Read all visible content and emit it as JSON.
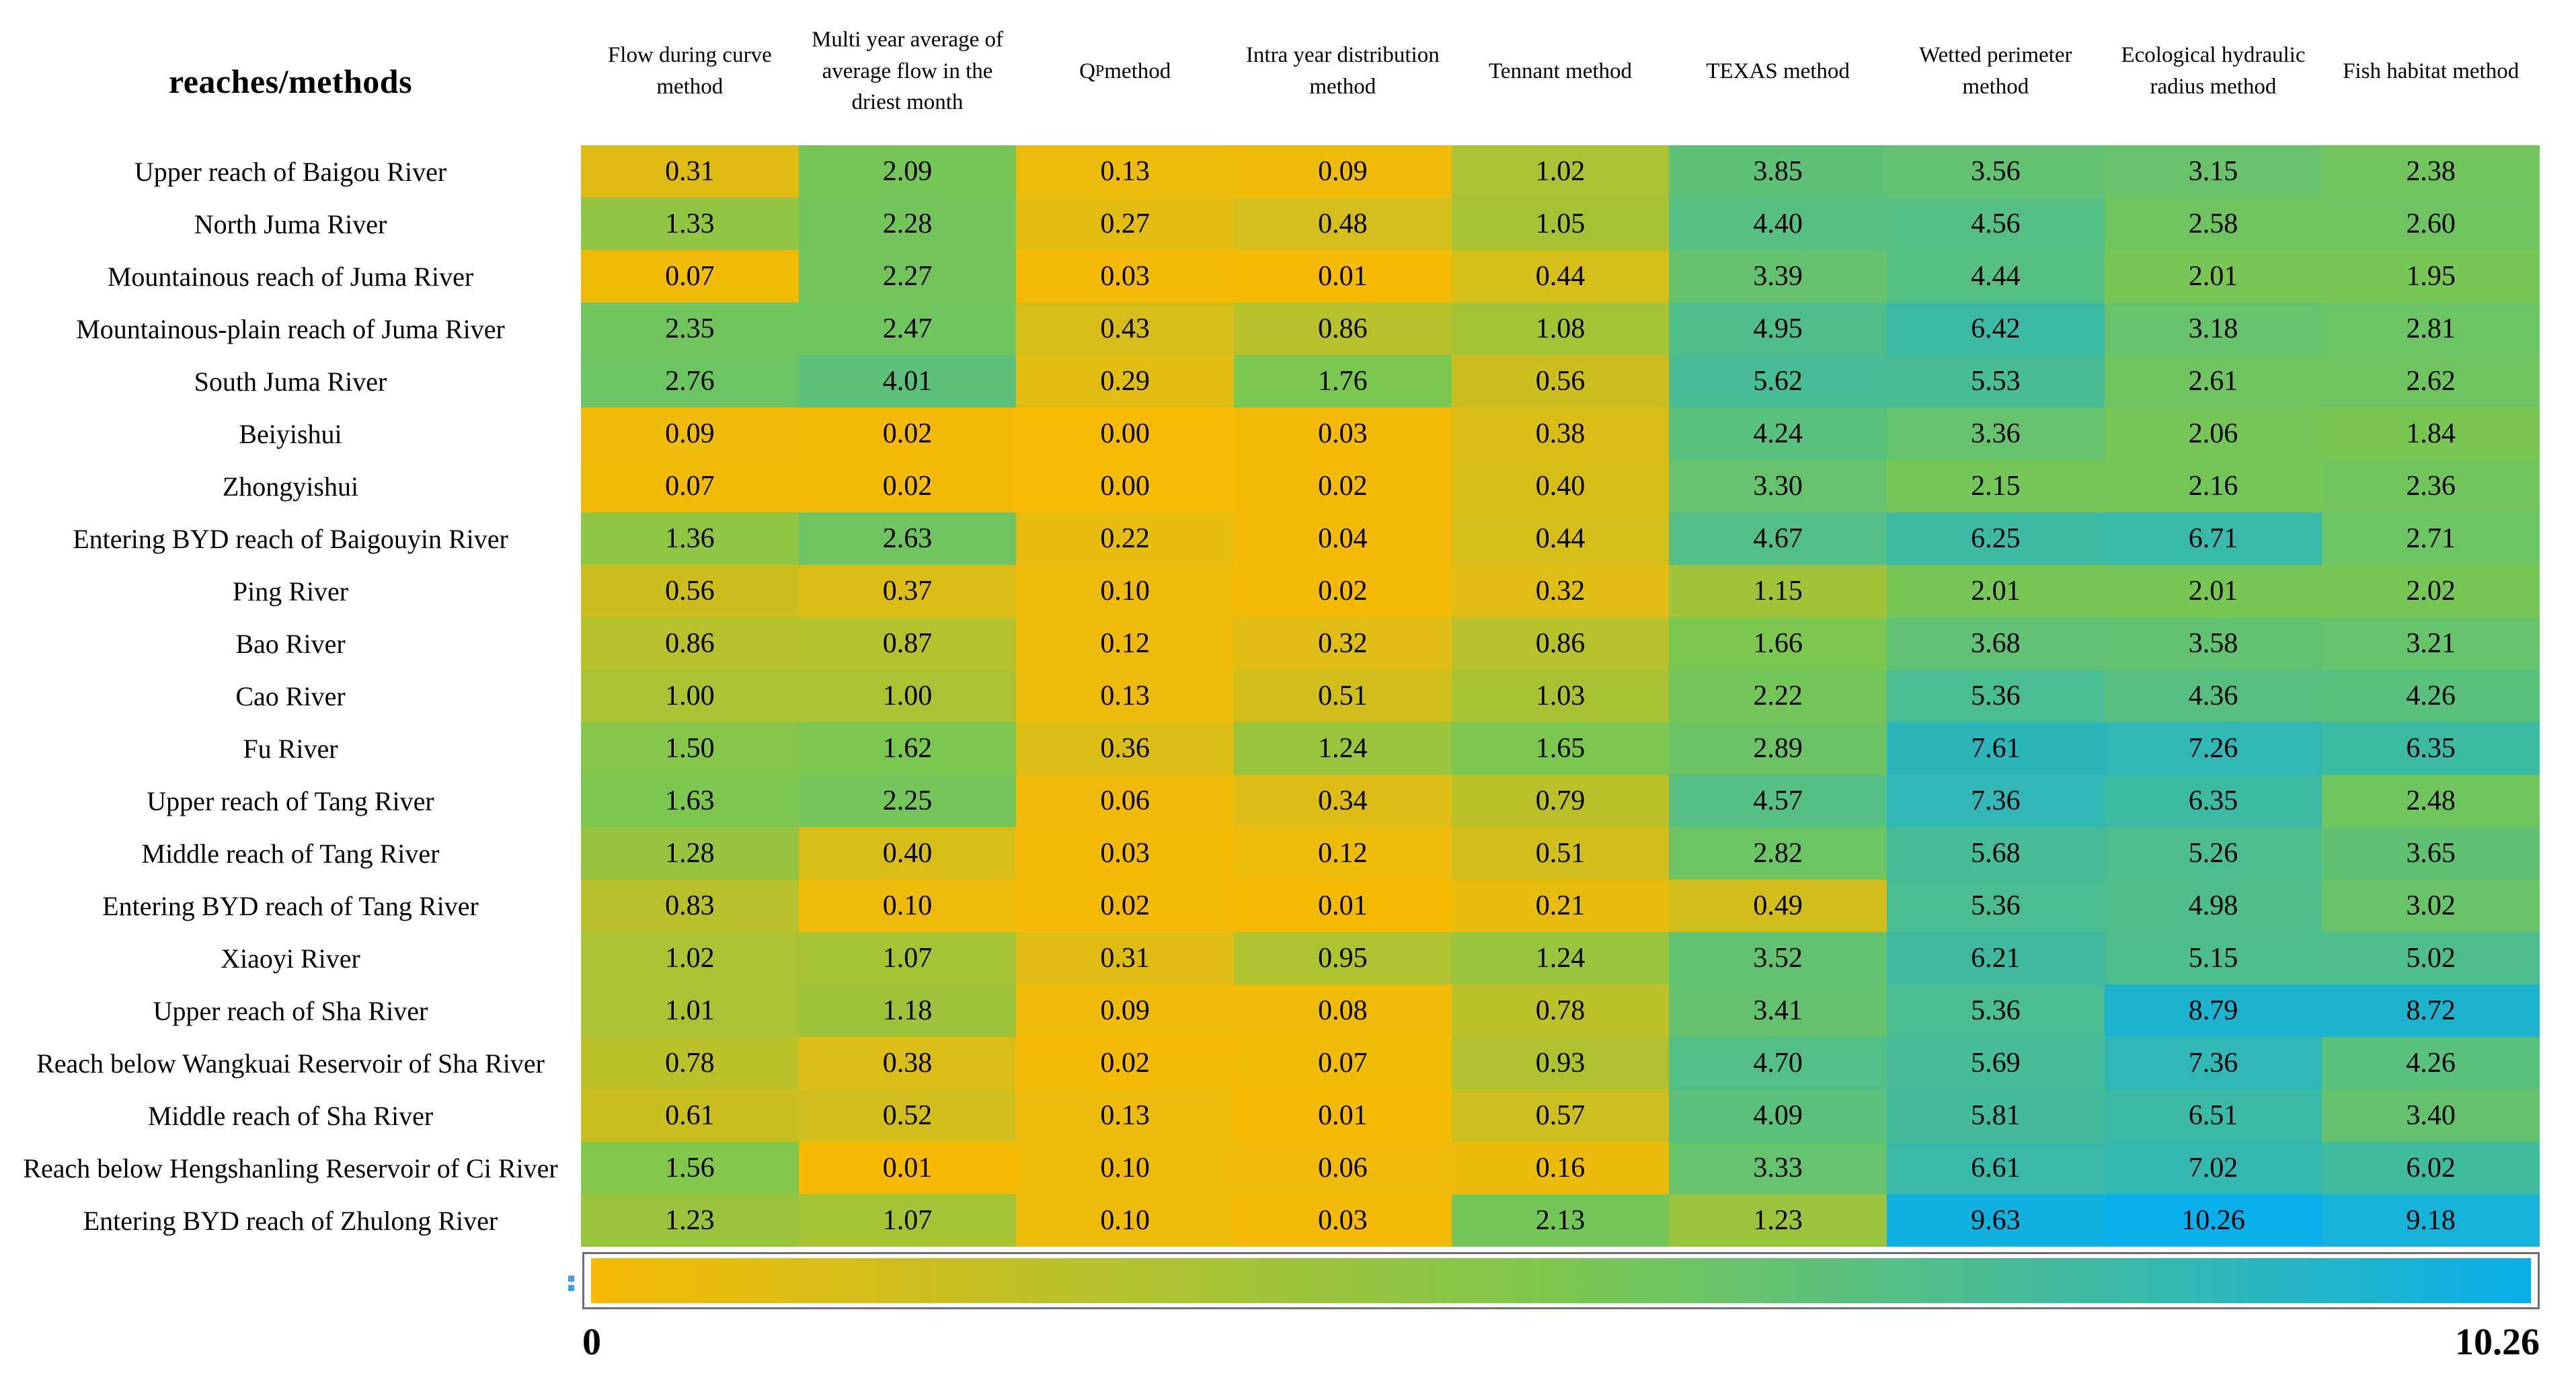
{
  "title": "reaches/methods",
  "chart_data": {
    "type": "heatmap",
    "title": "reaches/methods",
    "legend_position": "bottom",
    "columns": [
      {
        "label": "Flow during curve method"
      },
      {
        "label": "Multi year average of average flow in the driest month"
      },
      {
        "label": "QP method",
        "base": "Q",
        "subscript": "P",
        "suffix": " method"
      },
      {
        "label": "Intra year distribution method"
      },
      {
        "label": "Tennant method"
      },
      {
        "label": "TEXAS method"
      },
      {
        "label": "Wetted perimeter method"
      },
      {
        "label": "Ecological hydraulic radius method"
      },
      {
        "label": "Fish habitat method"
      }
    ],
    "rows": [
      "Upper reach of Baigou River",
      "North Juma River",
      "Mountainous reach of Juma River",
      "Mountainous-plain reach of Juma River",
      "South Juma River",
      "Beiyishui",
      "Zhongyishui",
      "Entering BYD reach of Baigouyin River",
      "Ping River",
      "Bao River",
      "Cao River",
      "Fu River",
      "Upper reach of Tang River",
      "Middle reach of Tang River",
      "Entering BYD reach of Tang River",
      "Xiaoyi River",
      "Upper reach of Sha River",
      "Reach below Wangkuai Reservoir of Sha River",
      "Middle reach of Sha River",
      "Reach below Hengshanling Reservoir of Ci River",
      "Entering BYD reach of Zhulong River"
    ],
    "values": [
      [
        0.31,
        2.09,
        0.13,
        0.09,
        1.02,
        3.85,
        3.56,
        3.15,
        2.38
      ],
      [
        1.33,
        2.28,
        0.27,
        0.48,
        1.05,
        4.4,
        4.56,
        2.58,
        2.6
      ],
      [
        0.07,
        2.27,
        0.03,
        0.01,
        0.44,
        3.39,
        4.44,
        2.01,
        1.95
      ],
      [
        2.35,
        2.47,
        0.43,
        0.86,
        1.08,
        4.95,
        6.42,
        3.18,
        2.81
      ],
      [
        2.76,
        4.01,
        0.29,
        1.76,
        0.56,
        5.62,
        5.53,
        2.61,
        2.62
      ],
      [
        0.09,
        0.02,
        0.0,
        0.03,
        0.38,
        4.24,
        3.36,
        2.06,
        1.84
      ],
      [
        0.07,
        0.02,
        0.0,
        0.02,
        0.4,
        3.3,
        2.15,
        2.16,
        2.36
      ],
      [
        1.36,
        2.63,
        0.22,
        0.04,
        0.44,
        4.67,
        6.25,
        6.71,
        2.71
      ],
      [
        0.56,
        0.37,
        0.1,
        0.02,
        0.32,
        1.15,
        2.01,
        2.01,
        2.02
      ],
      [
        0.86,
        0.87,
        0.12,
        0.32,
        0.86,
        1.66,
        3.68,
        3.58,
        3.21
      ],
      [
        1.0,
        1.0,
        0.13,
        0.51,
        1.03,
        2.22,
        5.36,
        4.36,
        4.26
      ],
      [
        1.5,
        1.62,
        0.36,
        1.24,
        1.65,
        2.89,
        7.61,
        7.26,
        6.35
      ],
      [
        1.63,
        2.25,
        0.06,
        0.34,
        0.79,
        4.57,
        7.36,
        6.35,
        2.48
      ],
      [
        1.28,
        0.4,
        0.03,
        0.12,
        0.51,
        2.82,
        5.68,
        5.26,
        3.65
      ],
      [
        0.83,
        0.1,
        0.02,
        0.01,
        0.21,
        0.49,
        5.36,
        4.98,
        3.02
      ],
      [
        1.02,
        1.07,
        0.31,
        0.95,
        1.24,
        3.52,
        6.21,
        5.15,
        5.02
      ],
      [
        1.01,
        1.18,
        0.09,
        0.08,
        0.78,
        3.41,
        5.36,
        8.79,
        8.72
      ],
      [
        0.78,
        0.38,
        0.02,
        0.07,
        0.93,
        4.7,
        5.69,
        7.36,
        4.26
      ],
      [
        0.61,
        0.52,
        0.13,
        0.01,
        0.57,
        4.09,
        5.81,
        6.51,
        3.4
      ],
      [
        1.56,
        0.01,
        0.1,
        0.06,
        0.16,
        3.33,
        6.61,
        7.02,
        6.02
      ],
      [
        1.23,
        1.07,
        0.1,
        0.03,
        2.13,
        1.23,
        9.63,
        10.26,
        9.18
      ]
    ],
    "value_format_decimals": 2,
    "colorbar": {
      "min_value": 0,
      "max_value": 10.26,
      "mid_value_for_color": 1.62,
      "min_label": "0",
      "max_label": "10.26",
      "colors": {
        "low": "#f7ba05",
        "mid": "#7cc74f",
        "high": "#09afea"
      }
    }
  }
}
